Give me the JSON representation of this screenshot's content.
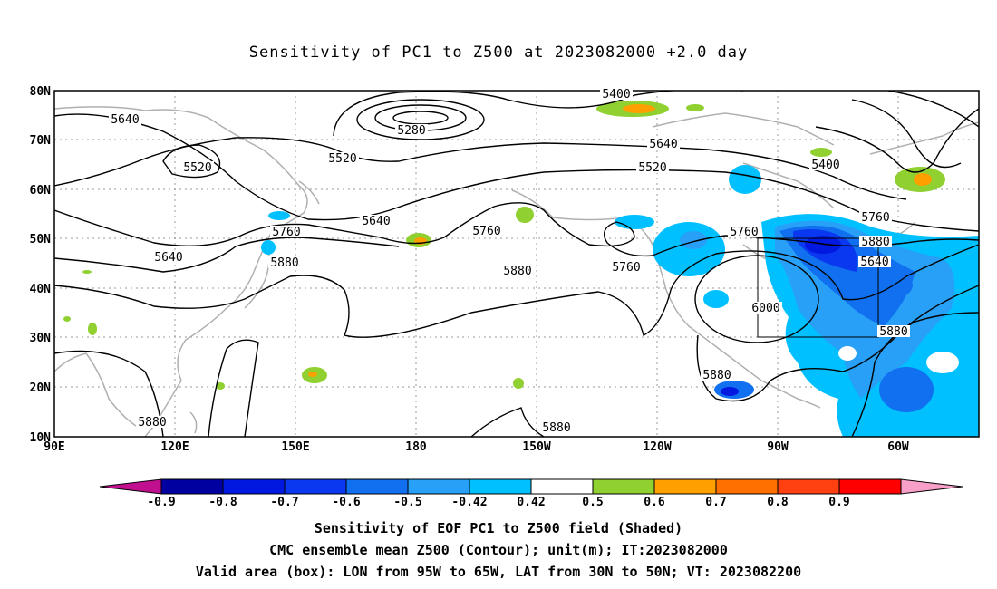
{
  "title": "Sensitivity of PC1 to Z500 at 2023082000 +2.0 day",
  "lat_labels": [
    "80N",
    "70N",
    "60N",
    "50N",
    "40N",
    "30N",
    "20N",
    "10N"
  ],
  "lon_labels": [
    "90E",
    "120E",
    "150E",
    "180",
    "150W",
    "120W",
    "90W",
    "60W"
  ],
  "contour_labels": [
    "5640",
    "5520",
    "5400",
    "5280",
    "5520",
    "5640",
    "5400",
    "5520",
    "5640",
    "5760",
    "5640",
    "5760",
    "5880",
    "5760",
    "5880",
    "5760",
    "5880",
    "5640",
    "5760",
    "6000",
    "5880",
    "5880",
    "5880",
    "5880"
  ],
  "colorbar": {
    "labels": [
      "-0.9",
      "-0.8",
      "-0.7",
      "-0.6",
      "-0.5",
      "-0.42",
      "0.42",
      "0.5",
      "0.6",
      "0.7",
      "0.8",
      "0.9"
    ],
    "colors": [
      "#c0108f",
      "#0000a0",
      "#0018e0",
      "#0a38f0",
      "#1070f0",
      "#28a0f8",
      "#00c0ff",
      "#ffffff",
      "#90d030",
      "#ffa000",
      "#ff7000",
      "#ff4010",
      "#ff0000",
      "#f8a0c8"
    ]
  },
  "captions": [
    "Sensitivity of EOF PC1 to Z500 field (Shaded)",
    "CMC ensemble mean Z500 (Contour); unit(m); IT:2023082000",
    "Valid area (box): LON from 95W to 65W, LAT from 30N to 50N; VT: 2023082200"
  ]
}
